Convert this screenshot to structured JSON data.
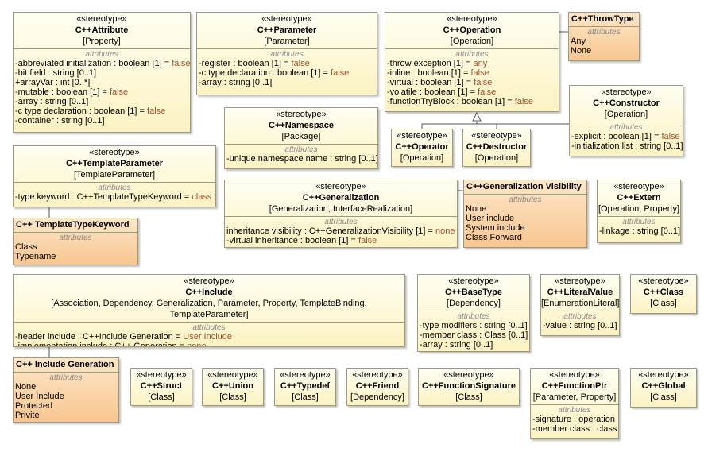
{
  "nodes": [
    {
      "kind": "stereotype",
      "stereotype": "«stereotype»",
      "name": "C++Attribute",
      "metaclass": "[Property]",
      "section": "attributes",
      "items": [
        {
          "text": "-abbreviated initialization : boolean [1] = ",
          "default": "false"
        },
        "-bit field : string [0..1]",
        "+arrayVar : int [0..*]",
        {
          "text": "-mutable : boolean [1] = ",
          "default": "false"
        },
        "-array : string [0..1]",
        {
          "text": "-c type declaration : boolean [1] = ",
          "default": "false"
        },
        "-container : string [0..1]"
      ]
    },
    {
      "kind": "stereotype",
      "stereotype": "«stereotype»",
      "name": "C++Parameter",
      "metaclass": "[Parameter]",
      "section": "attributes",
      "items": [
        {
          "text": "-register : boolean [1] = ",
          "default": "false"
        },
        {
          "text": "-c type declaration : boolean [1] = ",
          "default": "false"
        },
        "-array : string [0..1]"
      ]
    },
    {
      "kind": "stereotype",
      "stereotype": "«stereotype»",
      "name": "C++Operation",
      "metaclass": "[Operation]",
      "section": "attributes",
      "items": [
        {
          "text": "-throw exception [1] = ",
          "default": "any"
        },
        {
          "text": "-inline : boolean [1] = ",
          "default": "false"
        },
        {
          "text": "-virtual : boolean [1] = ",
          "default": "false"
        },
        {
          "text": "-volatile : boolean [1] = ",
          "default": "false"
        },
        {
          "text": "-functionTryBlock : boolean [1] = ",
          "default": "false"
        }
      ]
    },
    {
      "kind": "enumeration",
      "name": "C++ThrowType",
      "section": "attributes",
      "items": [
        "Any",
        "None"
      ]
    },
    {
      "kind": "stereotype",
      "stereotype": "«stereotype»",
      "name": "C++Constructor",
      "metaclass": "[Operation]",
      "section": "attributes",
      "items": [
        {
          "text": "-explicit : boolean [1] = ",
          "default": "false"
        },
        "-initialization list : string [0..1]"
      ]
    },
    {
      "kind": "stereotype",
      "stereotype": "«stereotype»",
      "name": "C++Namespace",
      "metaclass": "[Package]",
      "section": "attributes",
      "items": [
        "-unique namespace name : string [0..1]"
      ]
    },
    {
      "kind": "stereotype",
      "stereotype": "«stereotype»",
      "name": "C++Operator",
      "metaclass": "[Operation]"
    },
    {
      "kind": "stereotype",
      "stereotype": "«stereotype»",
      "name": "C++Destructor",
      "metaclass": "[Operation]"
    },
    {
      "kind": "stereotype",
      "stereotype": "«stereotype»",
      "name": "C++TemplateParameter",
      "metaclass": "[TemplateParameter]",
      "section": "attributes",
      "items": [
        {
          "text": "-type keyword : C++TemplateTypeKeyword = ",
          "default": "class"
        }
      ]
    },
    {
      "kind": "enumeration",
      "name": "C++ TemplateTypeKeyword",
      "section": "attributes",
      "items": [
        "Class",
        "Typename"
      ]
    },
    {
      "kind": "stereotype",
      "stereotype": "«stereotype»",
      "name": "C++Generalization",
      "metaclass": "[Generalization, InterfaceRealization]",
      "section": "attributes",
      "items": [
        {
          "text": "inheritance visibility : C++GeneralizationVisibility [1] = ",
          "default": "none"
        },
        {
          "text": "-virtual inheritance : boolean [1] = ",
          "default": "false"
        }
      ]
    },
    {
      "kind": "enumeration",
      "name": "C++Generalization Visibility",
      "section": "attributes",
      "items": [
        "None",
        "User include",
        "System include",
        "Class Forward"
      ]
    },
    {
      "kind": "stereotype",
      "stereotype": "«stereotype»",
      "name": "C++Extern",
      "metaclass": "[Operation, Property]",
      "section": "attributes",
      "items": [
        "-linkage : string [0..1]"
      ]
    },
    {
      "kind": "stereotype",
      "stereotype": "«stereotype»",
      "name": "C++Include",
      "metaclass": "[Association, Dependency, Generalization, Parameter, Property, TemplateBinding, TemplateParameter]",
      "section": "attributes",
      "items": [
        {
          "text": "-header include : C++Include Generation = ",
          "default": "User Include"
        },
        {
          "text": "-implementation include : C++ Generation = ",
          "default": "none"
        }
      ]
    },
    {
      "kind": "stereotype",
      "stereotype": "«stereotype»",
      "name": "C++BaseType",
      "metaclass": "[Dependency]",
      "section": "attributes",
      "items": [
        "-type modifiers : string [0..1]",
        "-member class : Class [0..1]",
        "-array : string [0..1]"
      ]
    },
    {
      "kind": "stereotype",
      "stereotype": "«stereotype»",
      "name": "C++LiteralValue",
      "metaclass": "[EnumerationLiteral]",
      "section": "attributes",
      "items": [
        "-value : string [0..1]"
      ]
    },
    {
      "kind": "stereotype",
      "stereotype": "«stereotype»",
      "name": "C++Class",
      "metaclass": "[Class]"
    },
    {
      "kind": "enumeration",
      "name": "C++ Include Generation",
      "section": "attributes",
      "items": [
        "None",
        "User Include",
        "Protected",
        "Privite"
      ]
    },
    {
      "kind": "stereotype",
      "stereotype": "«stereotype»",
      "name": "C++Struct",
      "metaclass": "[Class]"
    },
    {
      "kind": "stereotype",
      "stereotype": "«stereotype»",
      "name": "C++Union",
      "metaclass": "[Class]"
    },
    {
      "kind": "stereotype",
      "stereotype": "«stereotype»",
      "name": "C++Typedef",
      "metaclass": "[Class]"
    },
    {
      "kind": "stereotype",
      "stereotype": "«stereotype»",
      "name": "C++Friend",
      "metaclass": "[Dependency]"
    },
    {
      "kind": "stereotype",
      "stereotype": "«stereotype»",
      "name": "C++FunctionSignature",
      "metaclass": "[Class]"
    },
    {
      "kind": "stereotype",
      "stereotype": "«stereotype»",
      "name": "C++FunctionPtr",
      "metaclass": "[Parameter, Property]",
      "section": "attributes",
      "items": [
        "-signature : operation",
        "-member class : class"
      ]
    },
    {
      "kind": "stereotype",
      "stereotype": "«stereotype»",
      "name": "C++Global",
      "metaclass": "[Class]"
    }
  ]
}
